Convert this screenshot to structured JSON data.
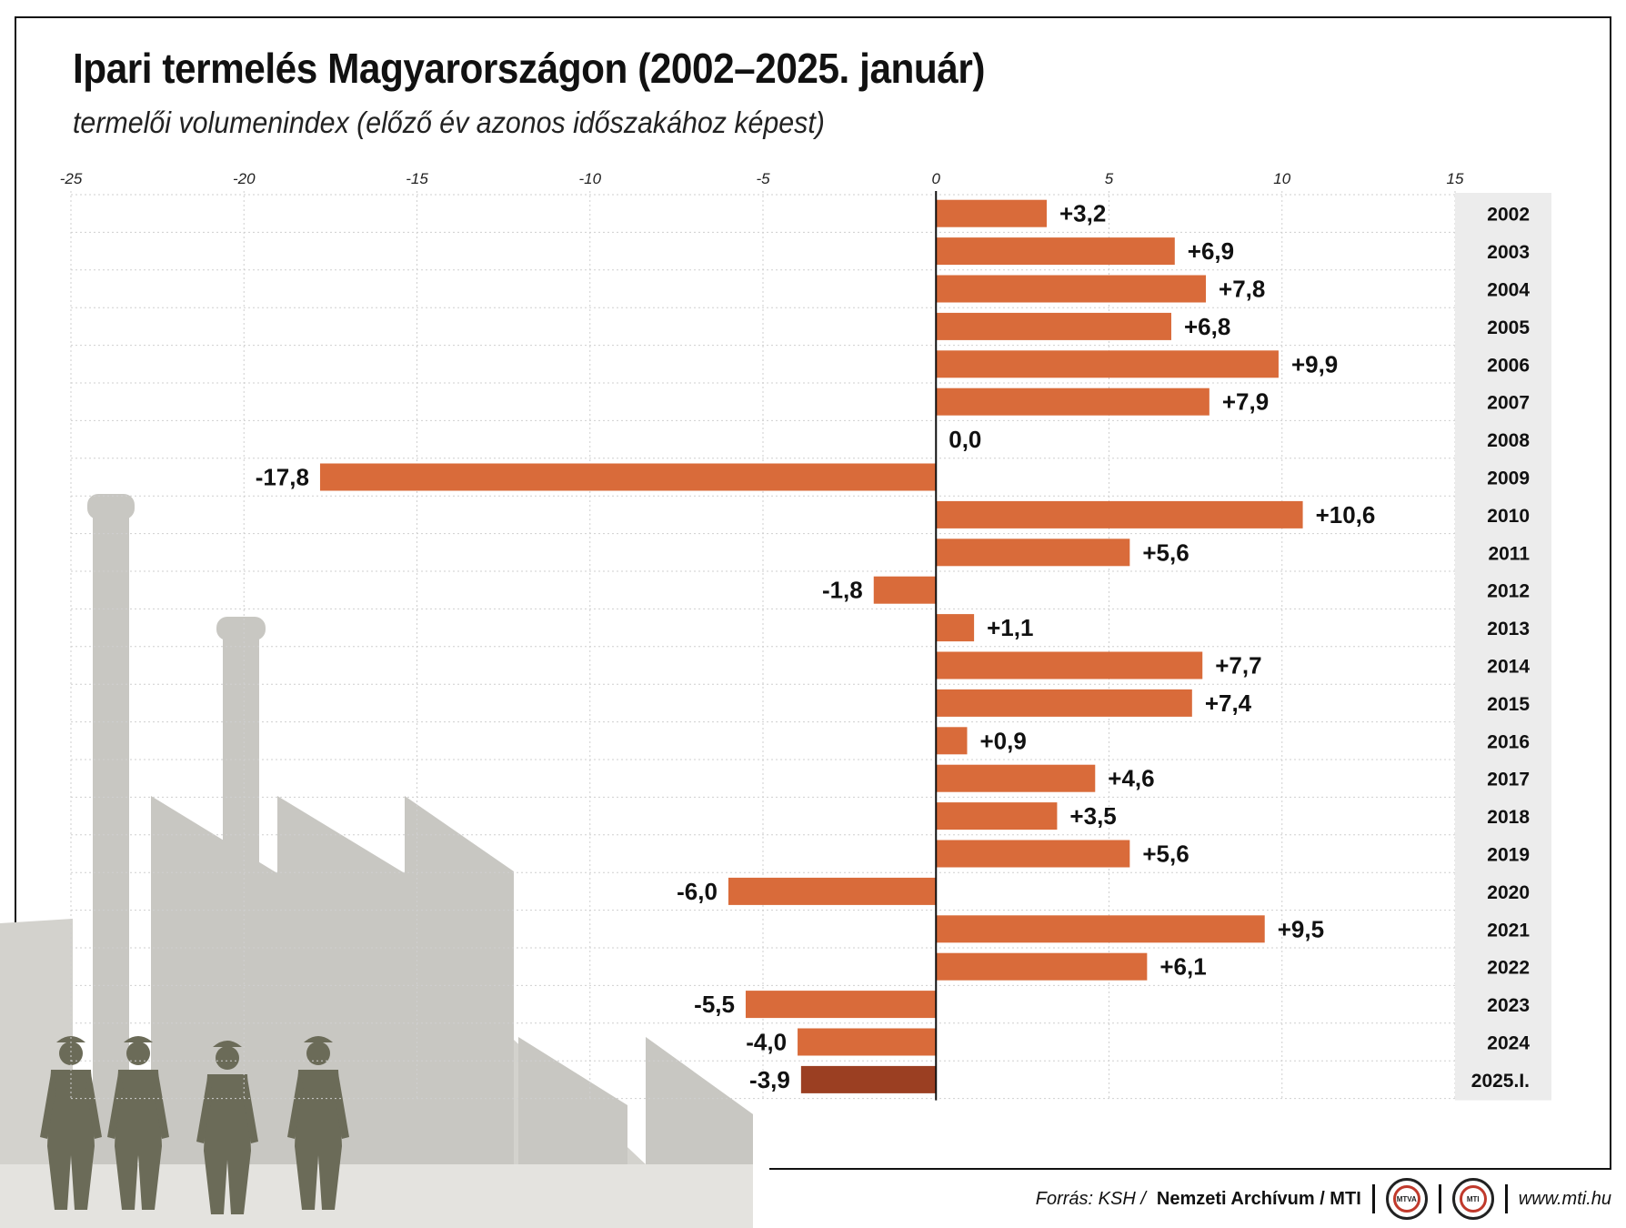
{
  "header": {
    "title": "Ipari termelés Magyarországon (2002–2025. január)",
    "subtitle": "termelői volumenindex (előző év azonos időszakához képest)"
  },
  "footer": {
    "source_prefix": "Forrás: KSH /",
    "source_bold": "Nemzeti Archívum / MTI",
    "logo1_text": "MTVA",
    "logo2_text": "MTI",
    "url": "www.mti.hu"
  },
  "colors": {
    "bar": "#D96B3A",
    "bar_highlight": "#9B3F22",
    "axis": "#111111",
    "grid": "#cfcfcf",
    "year_band": "#ececec",
    "silhouette": "#c8c7c2",
    "workers": "#6b6b58"
  },
  "chart_data": {
    "type": "bar",
    "orientation": "horizontal",
    "title": "Ipari termelés Magyarországon (2002–2025. január)",
    "subtitle": "termelői volumenindex (előző év azonos időszakához képest)",
    "xlim": [
      -25,
      15
    ],
    "xticks": [
      -25,
      -20,
      -15,
      -10,
      -5,
      0,
      5,
      10,
      15
    ],
    "xtick_labels": [
      "-25",
      "-20",
      "-15",
      "-10",
      "-5",
      "0",
      "5",
      "10",
      "15"
    ],
    "grid": true,
    "categories": [
      "2002",
      "2003",
      "2004",
      "2005",
      "2006",
      "2007",
      "2008",
      "2009",
      "2010",
      "2011",
      "2012",
      "2013",
      "2014",
      "2015",
      "2016",
      "2017",
      "2018",
      "2019",
      "2020",
      "2021",
      "2022",
      "2023",
      "2024",
      "2025.I."
    ],
    "values": [
      3.2,
      6.9,
      7.8,
      6.8,
      9.9,
      7.9,
      0.0,
      -17.8,
      10.6,
      5.6,
      -1.8,
      1.1,
      7.7,
      7.4,
      0.9,
      4.6,
      3.5,
      5.6,
      -6.0,
      9.5,
      6.1,
      -5.5,
      -4.0,
      -3.9
    ],
    "labels": [
      "+3,2",
      "+6,9",
      "+7,8",
      "+6,8",
      "+9,9",
      "+7,9",
      "0,0",
      "-17,8",
      "+10,6",
      "+5,6",
      "-1,8",
      "+1,1",
      "+7,7",
      "+7,4",
      "+0,9",
      "+4,6",
      "+3,5",
      "+5,6",
      "-6,0",
      "+9,5",
      "+6,1",
      "-5,5",
      "-4,0",
      "-3,9"
    ],
    "highlight_index": 23
  }
}
